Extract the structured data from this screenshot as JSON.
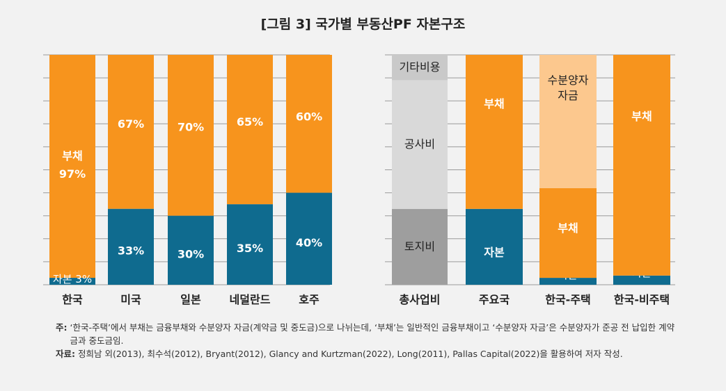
{
  "title": "[그림 3] 국가별 부동산PF 자본구조",
  "colors": {
    "debt": "#f7941d",
    "equity": "#0f6b8f",
    "grid": "#9a9a9a",
    "gray_top": "#c9c9c9",
    "gray_mid": "#d9d9d9",
    "gray_bottom": "#9e9e9e",
    "light_orange": "#fcc88e"
  },
  "chart_data": [
    {
      "type": "bar",
      "stacked": true,
      "unit": "%",
      "ylim": [
        0,
        100
      ],
      "grid": true,
      "categories": [
        "한국",
        "미국",
        "일본",
        "네덜란드",
        "호주"
      ],
      "series": [
        {
          "name": "자본",
          "values": [
            3,
            33,
            30,
            35,
            40
          ],
          "labels": [
            "자본 3%",
            "33%",
            "30%",
            "35%",
            "40%"
          ]
        },
        {
          "name": "부채",
          "values": [
            97,
            67,
            70,
            65,
            60
          ],
          "labels": [
            "부채\n97%",
            "67%",
            "70%",
            "65%",
            "60%"
          ]
        }
      ]
    },
    {
      "type": "bar",
      "stacked": true,
      "unit": "%",
      "ylim": [
        0,
        100
      ],
      "grid": true,
      "categories": [
        "총사업비",
        "주요국",
        "한국-주택",
        "한국-비주택"
      ],
      "segments": [
        [
          {
            "label": "토지비",
            "value": 33,
            "color": "gray_bottom"
          },
          {
            "label": "공사비",
            "value": 56,
            "color": "gray_mid"
          },
          {
            "label": "기타비용",
            "value": 11,
            "color": "gray_top"
          }
        ],
        [
          {
            "label": "자본",
            "value": 33,
            "color": "equity"
          },
          {
            "label": "부채",
            "value": 67,
            "color": "debt"
          }
        ],
        [
          {
            "label": "자본",
            "value": 3,
            "color": "equity"
          },
          {
            "label": "부채",
            "value": 39,
            "color": "debt"
          },
          {
            "label": "수분양자\n자금",
            "value": 58,
            "color": "light_orange"
          }
        ],
        [
          {
            "label": "자본",
            "value": 4,
            "color": "equity"
          },
          {
            "label": "부채",
            "value": 96,
            "color": "debt"
          }
        ]
      ]
    }
  ],
  "notes": [
    {
      "key": "주:",
      "text": "‘한국-주택’에서 부채는 금융부채와 수분양자 자금(계약금 및 중도금)으로 나뉘는데, ‘부채’는 일반적인 금융부채이고 ‘수분양자 자금’은 수분양자가 준공 전 납입한 계약금과 중도금임."
    },
    {
      "key": "자료:",
      "text": "정희남 외(2013), 최수석(2012), Bryant(2012), Glancy and Kurtzman(2022), Long(2011), Pallas Capital(2022)을 활용하여 저자 작성."
    }
  ]
}
